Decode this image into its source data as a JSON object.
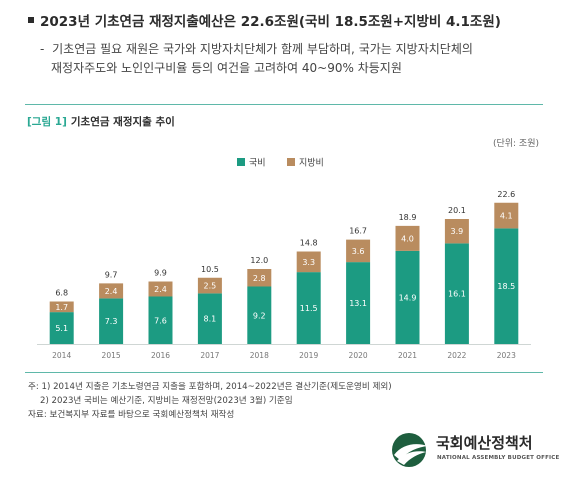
{
  "headline": "2023년 기초연금 재정지출예산은 22.6조원(국비 18.5조원+지방비 4.1조원)",
  "subtext": {
    "dash": "-",
    "line1": "기초연금 필요 재원은 국가와 지방자치단체가 함께 부담하며, 국가는 지방자치단체의",
    "line2": "재정자주도와 노인인구비율 등의 여건을 고려하여 40~90% 차등지원"
  },
  "figure": {
    "tag": "[그림 1]",
    "title": "기초연금 재정지출 추이",
    "unit": "(단위: 조원)"
  },
  "colors": {
    "national": "#1c9b82",
    "local": "#b98c5f",
    "accent_line": "#5fb8a9"
  },
  "chart_data": {
    "type": "bar",
    "stacked": true,
    "categories": [
      "2014",
      "2015",
      "2016",
      "2017",
      "2018",
      "2019",
      "2020",
      "2021",
      "2022",
      "2023"
    ],
    "series": [
      {
        "name": "국비",
        "values": [
          5.1,
          7.3,
          7.6,
          8.1,
          9.2,
          11.5,
          13.1,
          14.9,
          16.1,
          18.5
        ]
      },
      {
        "name": "지방비",
        "values": [
          1.7,
          2.4,
          2.4,
          2.5,
          2.8,
          3.3,
          3.6,
          4.0,
          3.9,
          4.1
        ]
      }
    ],
    "totals": [
      6.8,
      9.7,
      9.9,
      10.5,
      12.0,
      14.8,
      16.7,
      18.9,
      20.1,
      22.6
    ],
    "total_labels": [
      "6.8",
      "9.7",
      "9.9",
      "10.5",
      "12.0",
      "14.8",
      "16.7",
      "18.9",
      "20.1",
      "22.6"
    ],
    "national_labels": [
      "5.1",
      "7.3",
      "7.6",
      "8.1",
      "9.2",
      "11.5",
      "13.1",
      "14.9",
      "16.1",
      "18.5"
    ],
    "local_labels": [
      "1.7",
      "2.4",
      "2.4",
      "2.5",
      "2.8",
      "3.3",
      "3.6",
      "4.0",
      "3.9",
      "4.1"
    ],
    "legend_position": "top-center",
    "ylim": [
      0,
      24
    ],
    "grid": false
  },
  "notes": {
    "note1": "주: 1) 2014년 지출은 기초노령연금 지출을 포함하며, 2014~2022년은 결산기준(제도운영비 제외)",
    "note2": "2) 2023년 국비는 예산기준, 지방비는 재정전망(2023년 3월) 기준임",
    "source": "자료: 보건복지부 자료를 바탕으로 국회예산정책처 재작성"
  },
  "logo": {
    "name_ko": "국회예산정책처",
    "name_en": "NATIONAL ASSEMBLY BUDGET OFFICE",
    "icon": "nabo-emblem-icon"
  }
}
